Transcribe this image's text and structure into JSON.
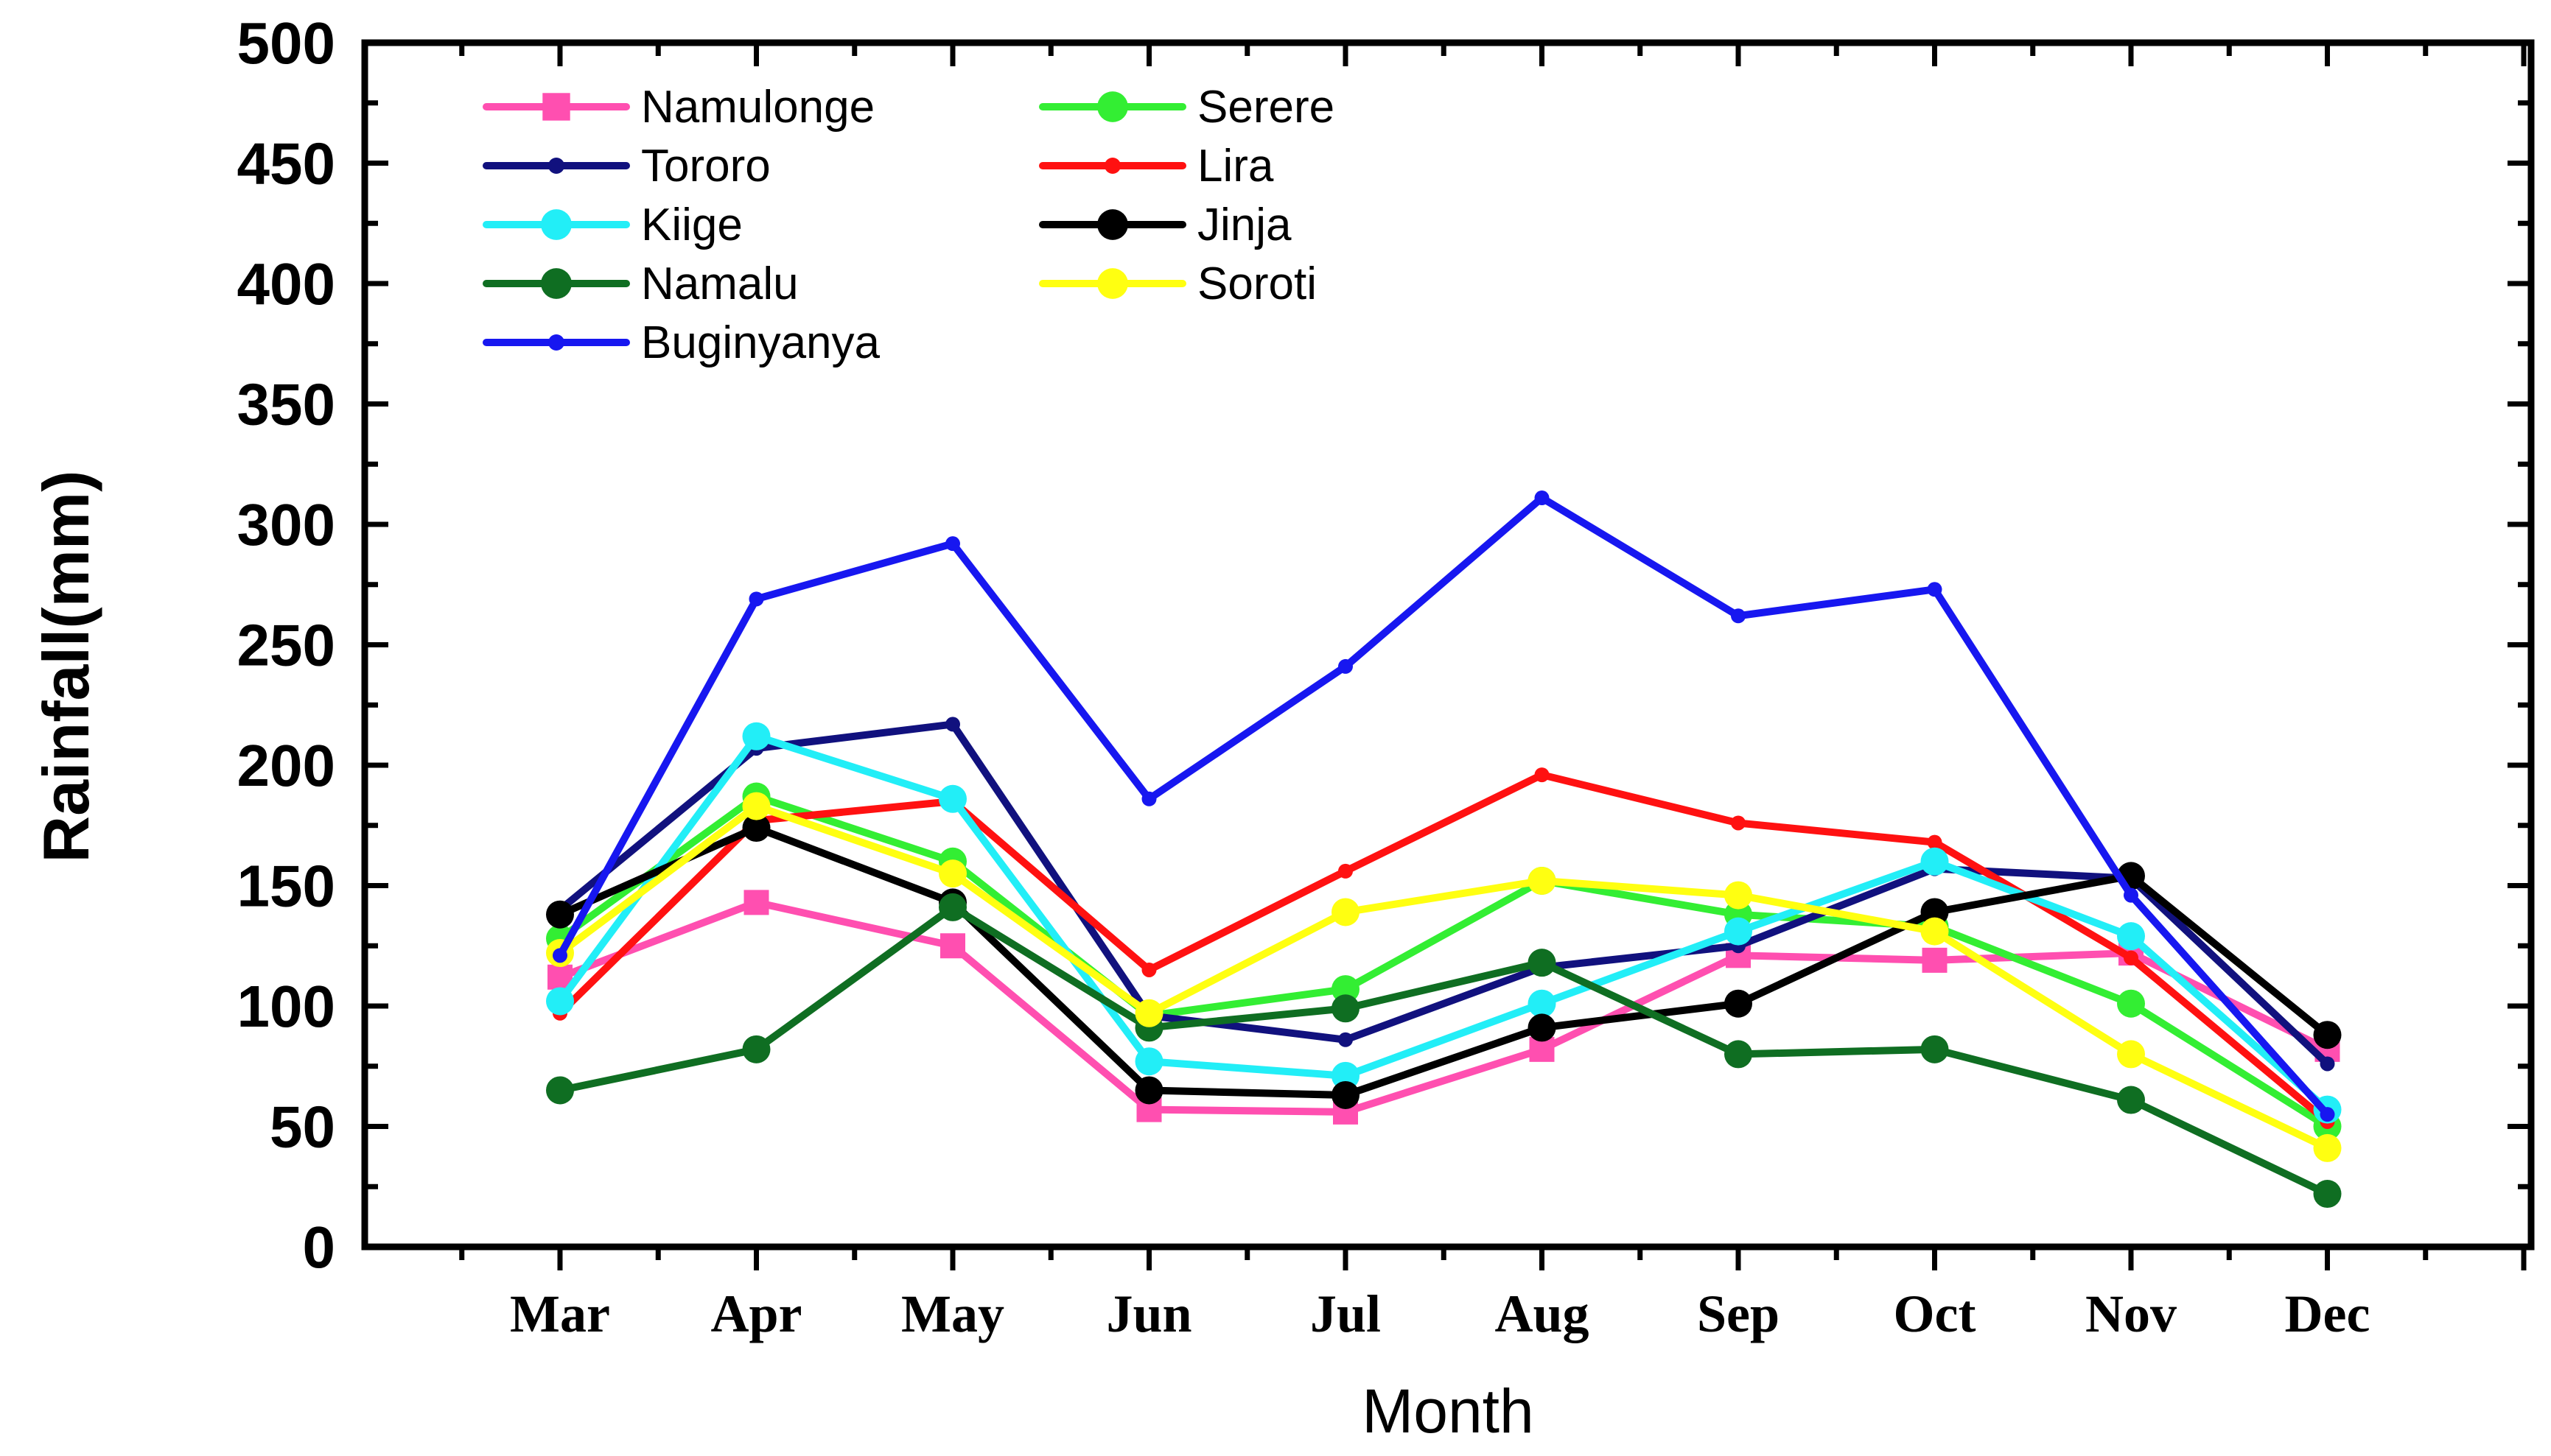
{
  "chart_data": {
    "type": "line",
    "title": "",
    "xlabel": "Month",
    "ylabel": "Rainfall(mm)",
    "ylim": [
      0,
      500
    ],
    "yticks": [
      "0",
      "50",
      "100",
      "150",
      "200",
      "250",
      "300",
      "350",
      "400",
      "450",
      "500"
    ],
    "categories": [
      "Mar",
      "Apr",
      "May",
      "Jun",
      "Jul",
      "Aug",
      "Sep",
      "Oct",
      "Nov",
      "Dec"
    ],
    "legend_position": "top-left",
    "series": [
      {
        "name": "Namulonge",
        "color": "#FF4FB0",
        "marker": "square",
        "values": [
          112,
          143,
          125,
          57,
          56,
          82,
          121,
          119,
          122,
          82
        ]
      },
      {
        "name": "Serere",
        "color": "#33EE33",
        "marker": "circle",
        "values": [
          128,
          187,
          160,
          96,
          107,
          152,
          138,
          133,
          101,
          50
        ]
      },
      {
        "name": "Tororo",
        "color": "#11117E",
        "marker": "dot",
        "values": [
          140,
          207,
          217,
          96,
          86,
          116,
          125,
          157,
          153,
          76
        ]
      },
      {
        "name": "Lira",
        "color": "#FF1111",
        "marker": "dot",
        "values": [
          97,
          177,
          185,
          115,
          156,
          196,
          176,
          168,
          120,
          52
        ]
      },
      {
        "name": "Kiige",
        "color": "#22EEF7",
        "marker": "circle",
        "values": [
          102,
          212,
          186,
          77,
          71,
          101,
          131,
          160,
          129,
          57
        ]
      },
      {
        "name": "Jinja",
        "color": "#000000",
        "marker": "circle",
        "values": [
          138,
          174,
          143,
          65,
          63,
          91,
          101,
          139,
          154,
          88
        ]
      },
      {
        "name": "Namalu",
        "color": "#0F6E22",
        "marker": "circle",
        "values": [
          65,
          82,
          141,
          91,
          99,
          118,
          80,
          82,
          61,
          22
        ]
      },
      {
        "name": "Soroti",
        "color": "#FFFF11",
        "marker": "circle",
        "values": [
          122,
          183,
          155,
          97,
          139,
          152,
          146,
          131,
          80,
          41
        ]
      },
      {
        "name": "Buginyanya",
        "color": "#1717F0",
        "marker": "dot",
        "values": [
          121,
          269,
          292,
          186,
          241,
          311,
          262,
          273,
          146,
          55
        ]
      }
    ]
  }
}
